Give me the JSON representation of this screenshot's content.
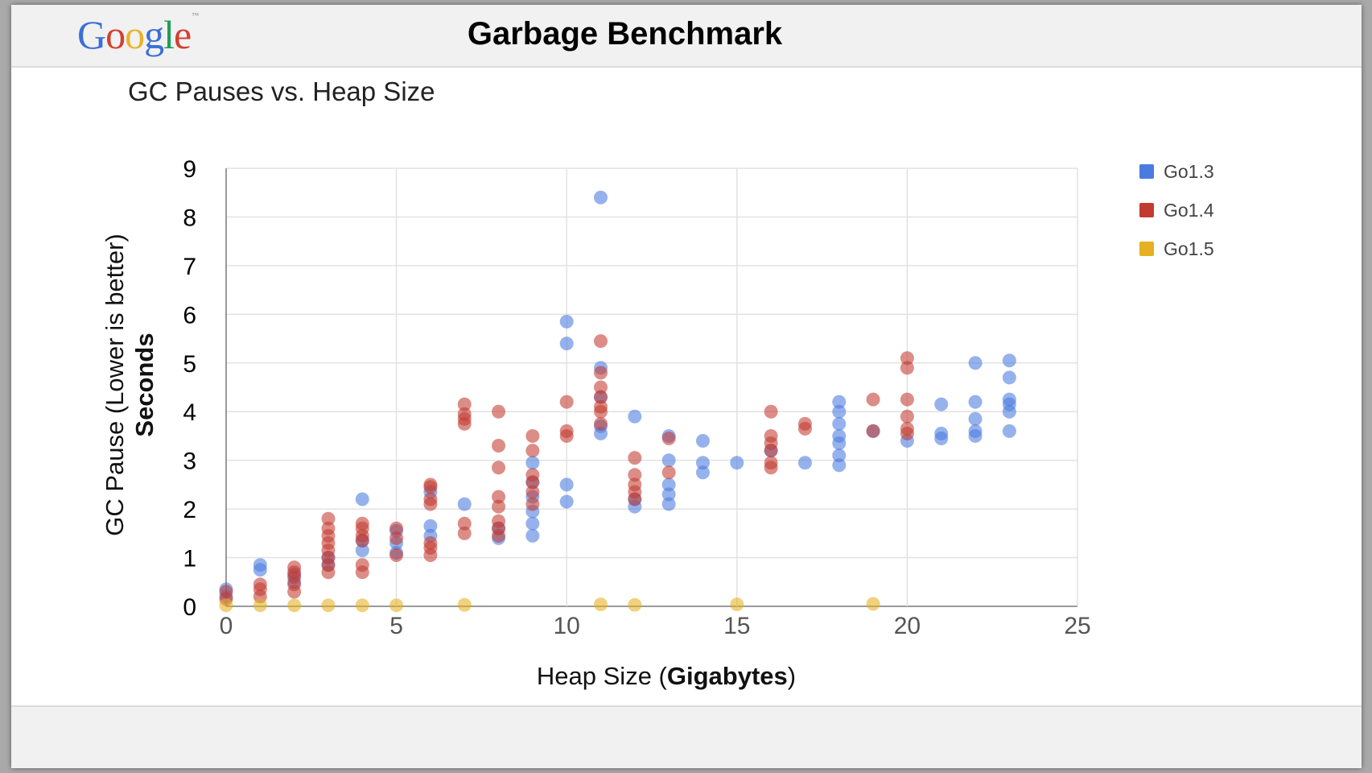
{
  "header": {
    "logo_letters": [
      {
        "ch": "G",
        "color": "#3b6fd6"
      },
      {
        "ch": "o",
        "color": "#d23f31"
      },
      {
        "ch": "o",
        "color": "#e9b229"
      },
      {
        "ch": "g",
        "color": "#3b6fd6"
      },
      {
        "ch": "l",
        "color": "#1f9d55"
      },
      {
        "ch": "e",
        "color": "#d23f31"
      }
    ],
    "logo_mark": "™",
    "title": "Garbage Benchmark"
  },
  "chart_data": {
    "type": "scatter",
    "title": "GC Pauses vs. Heap Size",
    "xlabel_plain": "Heap Size (",
    "xlabel_bold": "Gigabytes",
    "xlabel_end": ")",
    "ylabel_line1": "GC Pause (Lower is better)",
    "ylabel_line2": "Seconds",
    "xlim": [
      0,
      25
    ],
    "ylim": [
      0,
      9
    ],
    "xticks": [
      0,
      5,
      10,
      15,
      20,
      25
    ],
    "yticks": [
      0,
      1,
      2,
      3,
      4,
      5,
      6,
      7,
      8,
      9
    ],
    "grid": true,
    "legend_position": "right",
    "series": [
      {
        "name": "Go1.3",
        "color": "#4a7be0",
        "points": [
          [
            0,
            0.35
          ],
          [
            0,
            0.2
          ],
          [
            1,
            0.85
          ],
          [
            1,
            0.75
          ],
          [
            2,
            0.65
          ],
          [
            2,
            0.5
          ],
          [
            3,
            1.0
          ],
          [
            3,
            0.85
          ],
          [
            4,
            2.2
          ],
          [
            4,
            1.35
          ],
          [
            4,
            1.15
          ],
          [
            5,
            1.55
          ],
          [
            5,
            1.3
          ],
          [
            5,
            1.1
          ],
          [
            6,
            1.65
          ],
          [
            6,
            1.45
          ],
          [
            6,
            2.35
          ],
          [
            7,
            2.1
          ],
          [
            8,
            1.4
          ],
          [
            8,
            1.6
          ],
          [
            9,
            2.95
          ],
          [
            9,
            2.55
          ],
          [
            9,
            2.25
          ],
          [
            9,
            1.95
          ],
          [
            9,
            1.7
          ],
          [
            9,
            1.45
          ],
          [
            10,
            5.85
          ],
          [
            10,
            5.4
          ],
          [
            10,
            2.5
          ],
          [
            10,
            2.15
          ],
          [
            11,
            8.4
          ],
          [
            11,
            4.9
          ],
          [
            11,
            4.3
          ],
          [
            11,
            3.7
          ],
          [
            11,
            3.55
          ],
          [
            12,
            3.9
          ],
          [
            12,
            2.2
          ],
          [
            12,
            2.05
          ],
          [
            13,
            3.5
          ],
          [
            13,
            3.0
          ],
          [
            13,
            2.5
          ],
          [
            13,
            2.3
          ],
          [
            13,
            2.1
          ],
          [
            14,
            3.4
          ],
          [
            14,
            2.95
          ],
          [
            14,
            2.75
          ],
          [
            15,
            2.95
          ],
          [
            16,
            3.2
          ],
          [
            17,
            2.95
          ],
          [
            18,
            4.2
          ],
          [
            18,
            4.0
          ],
          [
            18,
            3.75
          ],
          [
            18,
            3.5
          ],
          [
            18,
            3.35
          ],
          [
            18,
            3.1
          ],
          [
            18,
            2.9
          ],
          [
            19,
            3.6
          ],
          [
            20,
            3.4
          ],
          [
            21,
            4.15
          ],
          [
            21,
            3.55
          ],
          [
            21,
            3.45
          ],
          [
            22,
            5.0
          ],
          [
            22,
            4.2
          ],
          [
            22,
            3.85
          ],
          [
            22,
            3.6
          ],
          [
            22,
            3.5
          ],
          [
            23,
            5.05
          ],
          [
            23,
            4.7
          ],
          [
            23,
            4.25
          ],
          [
            23,
            4.15
          ],
          [
            23,
            4.0
          ],
          [
            23,
            3.6
          ]
        ]
      },
      {
        "name": "Go1.4",
        "color": "#c23b30",
        "points": [
          [
            0,
            0.3
          ],
          [
            0,
            0.15
          ],
          [
            1,
            0.45
          ],
          [
            1,
            0.35
          ],
          [
            1,
            0.2
          ],
          [
            2,
            0.8
          ],
          [
            2,
            0.7
          ],
          [
            2,
            0.6
          ],
          [
            2,
            0.45
          ],
          [
            2,
            0.3
          ],
          [
            3,
            1.8
          ],
          [
            3,
            1.6
          ],
          [
            3,
            1.45
          ],
          [
            3,
            1.3
          ],
          [
            3,
            1.15
          ],
          [
            3,
            1.0
          ],
          [
            3,
            0.85
          ],
          [
            3,
            0.7
          ],
          [
            4,
            1.7
          ],
          [
            4,
            1.6
          ],
          [
            4,
            1.45
          ],
          [
            4,
            1.35
          ],
          [
            4,
            0.85
          ],
          [
            4,
            0.7
          ],
          [
            5,
            1.6
          ],
          [
            5,
            1.4
          ],
          [
            5,
            1.05
          ],
          [
            6,
            2.5
          ],
          [
            6,
            2.45
          ],
          [
            6,
            2.2
          ],
          [
            6,
            2.1
          ],
          [
            6,
            1.3
          ],
          [
            6,
            1.2
          ],
          [
            6,
            1.05
          ],
          [
            7,
            4.15
          ],
          [
            7,
            3.95
          ],
          [
            7,
            3.85
          ],
          [
            7,
            3.75
          ],
          [
            7,
            1.7
          ],
          [
            7,
            1.5
          ],
          [
            8,
            4.0
          ],
          [
            8,
            3.3
          ],
          [
            8,
            2.85
          ],
          [
            8,
            2.25
          ],
          [
            8,
            2.05
          ],
          [
            8,
            1.75
          ],
          [
            8,
            1.6
          ],
          [
            8,
            1.45
          ],
          [
            9,
            3.5
          ],
          [
            9,
            3.2
          ],
          [
            9,
            2.7
          ],
          [
            9,
            2.55
          ],
          [
            9,
            2.35
          ],
          [
            9,
            2.1
          ],
          [
            10,
            4.2
          ],
          [
            10,
            3.6
          ],
          [
            10,
            3.5
          ],
          [
            11,
            5.45
          ],
          [
            11,
            4.8
          ],
          [
            11,
            4.5
          ],
          [
            11,
            4.3
          ],
          [
            11,
            4.1
          ],
          [
            11,
            4.0
          ],
          [
            11,
            3.75
          ],
          [
            12,
            3.05
          ],
          [
            12,
            2.7
          ],
          [
            12,
            2.5
          ],
          [
            12,
            2.35
          ],
          [
            12,
            2.2
          ],
          [
            13,
            3.45
          ],
          [
            13,
            2.75
          ],
          [
            16,
            4.0
          ],
          [
            16,
            3.5
          ],
          [
            16,
            3.35
          ],
          [
            16,
            3.2
          ],
          [
            16,
            2.95
          ],
          [
            16,
            2.85
          ],
          [
            17,
            3.75
          ],
          [
            17,
            3.65
          ],
          [
            19,
            4.25
          ],
          [
            19,
            3.6
          ],
          [
            20,
            5.1
          ],
          [
            20,
            4.9
          ],
          [
            20,
            4.25
          ],
          [
            20,
            3.9
          ],
          [
            20,
            3.65
          ],
          [
            20,
            3.55
          ]
        ]
      },
      {
        "name": "Go1.5",
        "color": "#e5b021",
        "points": [
          [
            0,
            0.02
          ],
          [
            1,
            0.02
          ],
          [
            2,
            0.02
          ],
          [
            3,
            0.02
          ],
          [
            4,
            0.02
          ],
          [
            5,
            0.02
          ],
          [
            7,
            0.03
          ],
          [
            11,
            0.04
          ],
          [
            12,
            0.03
          ],
          [
            15,
            0.04
          ],
          [
            19,
            0.05
          ]
        ]
      }
    ]
  }
}
